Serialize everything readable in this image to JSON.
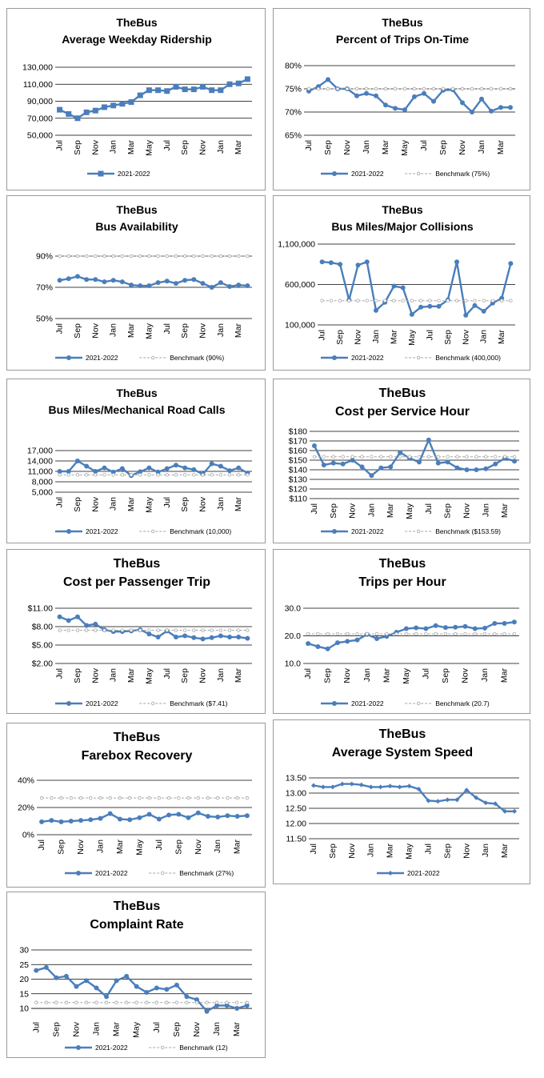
{
  "chart_data": [
    {
      "type": "line",
      "title": "TheBus",
      "subtitle": "Average Weekday Ridership",
      "categories": [
        "Jul",
        "",
        "Sep",
        "",
        "Nov",
        "",
        "Jan",
        "",
        "Mar",
        "",
        "May",
        "",
        "Jul",
        "",
        "Sep",
        "",
        "Nov",
        "",
        "Jan",
        "",
        "Mar",
        ""
      ],
      "series": [
        {
          "name": "2021-2022",
          "values": [
            80000,
            75000,
            70000,
            77000,
            79000,
            83000,
            85000,
            87000,
            89000,
            97000,
            103000,
            103000,
            102000,
            107000,
            104000,
            104000,
            107000,
            103000,
            103000,
            110000,
            111000,
            116000
          ]
        }
      ],
      "yticks": [
        "50,000",
        "70,000",
        "90,000",
        "110,000",
        "130,000"
      ],
      "ylim": [
        50000,
        130000
      ],
      "grid": true
    },
    {
      "type": "line",
      "title": "TheBus",
      "subtitle": "Percent of Trips On-Time",
      "categories": [
        "Jul",
        "",
        "Sep",
        "",
        "Nov",
        "",
        "Jan",
        "",
        "Mar",
        "",
        "May",
        "",
        "Jul",
        "",
        "Sep",
        "",
        "Nov",
        "",
        "Jan",
        "",
        "Mar",
        ""
      ],
      "series": [
        {
          "name": "2021-2022",
          "values": [
            74.5,
            75.5,
            77,
            75,
            75,
            73.5,
            74,
            73.5,
            71.5,
            70.8,
            70.5,
            73.3,
            74,
            72.3,
            74.7,
            74.8,
            72,
            70,
            72.8,
            70.2,
            71,
            71
          ]
        },
        {
          "name": "Benchmark (75%)",
          "values": [
            75,
            75,
            75,
            75,
            75,
            75,
            75,
            75,
            75,
            75,
            75,
            75,
            75,
            75,
            75,
            75,
            75,
            75,
            75,
            75,
            75,
            75
          ]
        }
      ],
      "yticks": [
        "65%",
        "70%",
        "75%",
        "80%"
      ],
      "ylim": [
        65,
        80
      ],
      "grid": true
    },
    {
      "type": "line",
      "title": "TheBus",
      "subtitle": "Bus Availability",
      "categories": [
        "Jul",
        "",
        "Sep",
        "",
        "Nov",
        "",
        "Jan",
        "",
        "Mar",
        "",
        "May",
        "",
        "Jul",
        "",
        "Sep",
        "",
        "Nov",
        "",
        "Jan",
        "",
        "Mar",
        ""
      ],
      "series": [
        {
          "name": "2021-2022",
          "values": [
            74.5,
            75.5,
            77,
            75,
            75,
            73.5,
            74.5,
            73.5,
            71.5,
            71,
            71,
            73,
            74,
            72.5,
            74.5,
            75,
            72.5,
            70,
            73,
            70.5,
            71.5,
            71
          ]
        },
        {
          "name": "Benchmark (90%)",
          "values": [
            90,
            90,
            90,
            90,
            90,
            90,
            90,
            90,
            90,
            90,
            90,
            90,
            90,
            90,
            90,
            90,
            90,
            90,
            90,
            90,
            90,
            90
          ]
        }
      ],
      "yticks": [
        "50%",
        "70%",
        "90%"
      ],
      "ylim": [
        50,
        90
      ],
      "grid": true
    },
    {
      "type": "line",
      "title": "TheBus",
      "subtitle": "Bus Miles/Major Collisions",
      "categories": [
        "Jul",
        "",
        "Sep",
        "",
        "Nov",
        "",
        "Jan",
        "",
        "Mar",
        "",
        "May",
        "",
        "Jul",
        "",
        "Sep",
        "",
        "Nov",
        "",
        "Jan",
        "",
        "Mar",
        ""
      ],
      "series": [
        {
          "name": "2021-2022",
          "values": [
            880000,
            870000,
            850000,
            410000,
            840000,
            880000,
            280000,
            380000,
            580000,
            560000,
            230000,
            320000,
            330000,
            330000,
            410000,
            880000,
            220000,
            340000,
            270000,
            370000,
            430000,
            860000
          ]
        },
        {
          "name": "Benchmark (400,000)",
          "values": [
            400000,
            400000,
            400000,
            400000,
            400000,
            400000,
            400000,
            400000,
            400000,
            400000,
            400000,
            400000,
            400000,
            400000,
            400000,
            400000,
            400000,
            400000,
            400000,
            400000,
            400000,
            400000
          ]
        }
      ],
      "yticks": [
        "100,000",
        "600,000",
        "1,100,000"
      ],
      "ylim": [
        100000,
        1100000
      ],
      "grid": true
    },
    {
      "type": "line",
      "title": "TheBus",
      "subtitle": "Bus Miles/Mechanical  Road Calls",
      "categories": [
        "Jul",
        "",
        "Sep",
        "",
        "Nov",
        "",
        "Jan",
        "",
        "Mar",
        "",
        "May",
        "",
        "Jul",
        "",
        "Sep",
        "",
        "Nov",
        "",
        "Jan",
        "",
        "Mar",
        ""
      ],
      "series": [
        {
          "name": "2021-2022",
          "values": [
            11000,
            11000,
            14000,
            12500,
            11000,
            12000,
            10800,
            11800,
            9800,
            10900,
            12000,
            10800,
            11800,
            12800,
            12000,
            11500,
            10200,
            13200,
            12500,
            11200,
            12000,
            10500
          ]
        },
        {
          "name": "Benchmark (10,000)",
          "values": [
            10000,
            10000,
            10000,
            10000,
            10000,
            10000,
            10000,
            10000,
            10000,
            10000,
            10000,
            10000,
            10000,
            10000,
            10000,
            10000,
            10000,
            10000,
            10000,
            10000,
            10000,
            10000
          ]
        }
      ],
      "yticks": [
        "5,000",
        "8,000",
        "11,000",
        "14,000",
        "17,000"
      ],
      "ylim": [
        5000,
        17000
      ],
      "grid": true
    },
    {
      "type": "line",
      "title": "TheBus",
      "subtitle": "Cost per Service Hour",
      "categories": [
        "Jul",
        "",
        "Sep",
        "",
        "Nov",
        "",
        "Jan",
        "",
        "Mar",
        "",
        "May",
        "",
        "Jul",
        "",
        "Sep",
        "",
        "Nov",
        "",
        "Jan",
        "",
        "Mar",
        ""
      ],
      "series": [
        {
          "name": "2021-2022",
          "values": [
            165,
            145,
            147,
            146,
            150,
            143,
            134,
            142,
            143,
            158,
            152,
            148,
            171,
            147,
            148,
            142,
            140,
            140,
            141,
            146,
            152,
            149
          ]
        },
        {
          "name": "Benchmark ($153.59)",
          "values": [
            153.59,
            153.59,
            153.59,
            153.59,
            153.59,
            153.59,
            153.59,
            153.59,
            153.59,
            153.59,
            153.59,
            153.59,
            153.59,
            153.59,
            153.59,
            153.59,
            153.59,
            153.59,
            153.59,
            153.59,
            153.59,
            153.59
          ]
        }
      ],
      "yticks": [
        "$110",
        "$120",
        "$130",
        "$140",
        "$150",
        "$160",
        "$170",
        "$180"
      ],
      "ylim": [
        110,
        180
      ],
      "grid": true
    },
    {
      "type": "line",
      "title": "TheBus",
      "subtitle": "Cost per Passenger Trip",
      "categories": [
        "Jul",
        "",
        "Sep",
        "",
        "Nov",
        "",
        "Jan",
        "",
        "Mar",
        "",
        "May",
        "",
        "Jul",
        "",
        "Sep",
        "",
        "Nov",
        "",
        "Jan",
        "",
        "Mar",
        ""
      ],
      "series": [
        {
          "name": "2021-2022",
          "values": [
            9.6,
            9.0,
            9.6,
            8.2,
            8.4,
            7.5,
            7.2,
            7.2,
            7.3,
            7.5,
            6.8,
            6.3,
            7.3,
            6.3,
            6.5,
            6.2,
            6.0,
            6.2,
            6.5,
            6.3,
            6.3,
            6.1
          ]
        },
        {
          "name": "Benchmark ($7.41)",
          "values": [
            7.41,
            7.41,
            7.41,
            7.41,
            7.41,
            7.41,
            7.41,
            7.41,
            7.41,
            7.41,
            7.41,
            7.41,
            7.41,
            7.41,
            7.41,
            7.41,
            7.41,
            7.41,
            7.41,
            7.41,
            7.41,
            7.41
          ]
        }
      ],
      "yticks": [
        "$2.00",
        "$5.00",
        "$8.00",
        "$11.00"
      ],
      "ylim": [
        2,
        11
      ],
      "grid": true
    },
    {
      "type": "line",
      "title": "TheBus",
      "subtitle": "Trips per Hour",
      "categories": [
        "Jul",
        "",
        "Sep",
        "",
        "Nov",
        "",
        "Jan",
        "",
        "Mar",
        "",
        "May",
        "",
        "Jul",
        "",
        "Sep",
        "",
        "Nov",
        "",
        "Jan",
        "",
        "Mar",
        ""
      ],
      "series": [
        {
          "name": "2021-2022",
          "values": [
            17.2,
            16.1,
            15.3,
            17.5,
            18.0,
            18.5,
            20.5,
            19.0,
            19.8,
            21.3,
            22.6,
            22.9,
            22.6,
            23.7,
            23.0,
            23.1,
            23.4,
            22.6,
            22.8,
            24.5,
            24.5,
            25.0
          ]
        },
        {
          "name": "Benchmark (20.7)",
          "values": [
            20.7,
            20.7,
            20.7,
            20.7,
            20.7,
            20.7,
            20.7,
            20.7,
            20.7,
            20.7,
            20.7,
            20.7,
            20.7,
            20.7,
            20.7,
            20.7,
            20.7,
            20.7,
            20.7,
            20.7,
            20.7,
            20.7
          ]
        }
      ],
      "yticks": [
        "10.0",
        "20.0",
        "30.0"
      ],
      "ylim": [
        10,
        30
      ],
      "grid": true
    },
    {
      "type": "line",
      "title": "TheBus",
      "subtitle": "Farebox Recovery",
      "categories": [
        "Jul",
        "",
        "Sep",
        "",
        "Nov",
        "",
        "Jan",
        "",
        "Mar",
        "",
        "May",
        "",
        "Jul",
        "",
        "Sep",
        "",
        "Nov",
        "",
        "Jan",
        "",
        "Mar",
        ""
      ],
      "series": [
        {
          "name": "2021-2022",
          "values": [
            9.5,
            10.5,
            9.5,
            10.0,
            10.5,
            11.0,
            12.0,
            15.5,
            11.5,
            11.0,
            12.5,
            15.0,
            11.5,
            14.5,
            15.0,
            12.5,
            16.0,
            13.5,
            13.0,
            14.0,
            13.5,
            14.0
          ]
        },
        {
          "name": "Benchmark (27%)",
          "values": [
            27,
            27,
            27,
            27,
            27,
            27,
            27,
            27,
            27,
            27,
            27,
            27,
            27,
            27,
            27,
            27,
            27,
            27,
            27,
            27,
            27,
            27
          ]
        }
      ],
      "yticks": [
        "0%",
        "20%",
        "40%"
      ],
      "ylim": [
        0,
        40
      ],
      "grid": true
    },
    {
      "type": "line",
      "title": "TheBus",
      "subtitle": "Average System Speed",
      "categories": [
        "Jul",
        "",
        "Sep",
        "",
        "Nov",
        "",
        "Jan",
        "",
        "Mar",
        "",
        "May",
        "",
        "Jul",
        "",
        "Sep",
        "",
        "Nov",
        "",
        "Jan",
        "",
        "Mar",
        ""
      ],
      "series": [
        {
          "name": "2021-2022",
          "values": [
            13.25,
            13.2,
            13.2,
            13.3,
            13.3,
            13.27,
            13.2,
            13.2,
            13.23,
            13.2,
            13.23,
            13.13,
            12.75,
            12.73,
            12.78,
            12.78,
            13.1,
            12.85,
            12.68,
            12.65,
            12.4,
            12.4
          ]
        }
      ],
      "yticks": [
        "11.50",
        "12.00",
        "12.50",
        "13.00",
        "13.50"
      ],
      "ylim": [
        11.5,
        13.5
      ],
      "grid": true
    },
    {
      "type": "line",
      "title": "TheBus",
      "subtitle": "Complaint Rate",
      "categories": [
        "Jul",
        "",
        "Sep",
        "",
        "Nov",
        "",
        "Jan",
        "",
        "Mar",
        "",
        "May",
        "",
        "Jul",
        "",
        "Sep",
        "",
        "Nov",
        "",
        "Jan",
        "",
        "Mar",
        ""
      ],
      "series": [
        {
          "name": "2021-2022",
          "values": [
            23,
            24,
            20.5,
            21,
            17.5,
            19.5,
            17,
            14,
            19.5,
            21,
            17.5,
            15.5,
            17,
            16.5,
            18,
            14,
            13,
            9,
            11,
            11,
            10,
            11
          ]
        },
        {
          "name": "Benchmark (12)",
          "values": [
            12,
            12,
            12,
            12,
            12,
            12,
            12,
            12,
            12,
            12,
            12,
            12,
            12,
            12,
            12,
            12,
            12,
            12,
            12,
            12,
            12,
            12
          ]
        }
      ],
      "yticks": [
        "10",
        "15",
        "20",
        "25",
        "30"
      ],
      "ylim": [
        7,
        30
      ],
      "grid": true
    }
  ],
  "colors": {
    "series": "#4a7ebb",
    "benchmark": "#a6a6a6",
    "grid": "#000000"
  }
}
